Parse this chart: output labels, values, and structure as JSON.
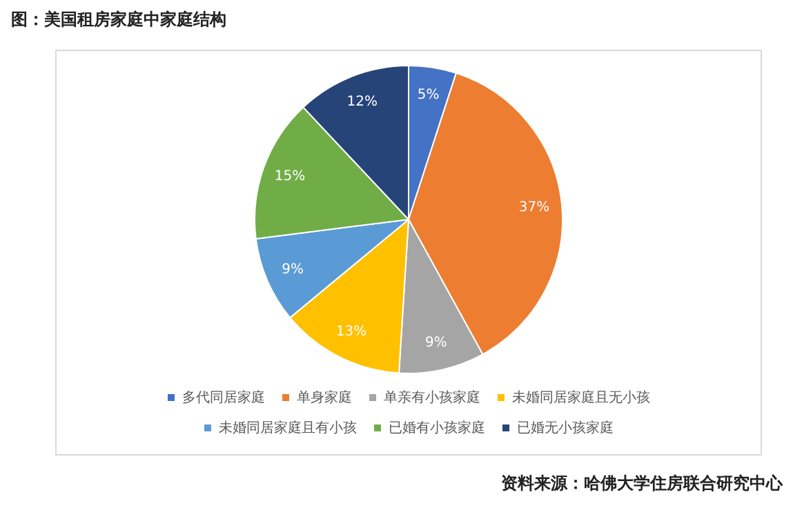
{
  "chart_data": {
    "type": "pie",
    "title": "图：美国租房家庭中家庭结构",
    "categories": [
      "多代同居家庭",
      "单身家庭",
      "单亲有小孩家庭",
      "未婚同居家庭且无小孩",
      "未婚同居家庭且有小孩",
      "已婚有小孩家庭",
      "已婚无小孩家庭"
    ],
    "values": [
      5,
      37,
      9,
      13,
      9,
      15,
      12
    ],
    "colors": [
      "#4472c4",
      "#ed7d31",
      "#a5a5a5",
      "#ffc000",
      "#5b9bd5",
      "#70ad47",
      "#264478"
    ],
    "value_labels": [
      "5%",
      "37%",
      "9%",
      "13%",
      "9%",
      "15%",
      "12%"
    ],
    "legend": "bottom",
    "annotations": [
      "资料来源：哈佛大学住房联合研究中心"
    ]
  }
}
